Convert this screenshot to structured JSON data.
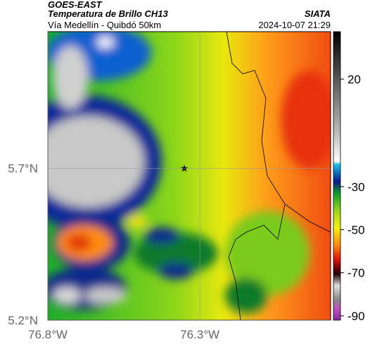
{
  "header": {
    "satellite": "GOES-EAST",
    "title": "Temperatura de Brillo CH13",
    "source": "SIATA",
    "subtitle": "Vía Medellín - Quibdó 50km",
    "timestamp": "2024-10-07 21:29"
  },
  "map": {
    "xlim": [
      -76.8,
      -75.87
    ],
    "ylim": [
      5.2,
      6.15
    ],
    "xticks": [
      {
        "value": -76.8,
        "label": "76.8°W"
      },
      {
        "value": -76.3,
        "label": "76.3°W"
      }
    ],
    "yticks": [
      {
        "value": 5.2,
        "label": "5.2°N"
      },
      {
        "value": 5.7,
        "label": "5.7°N"
      }
    ]
  },
  "colorbar": {
    "range": [
      -92,
      42
    ],
    "ticks": [
      20,
      -30,
      -50,
      -70,
      -90
    ]
  }
}
